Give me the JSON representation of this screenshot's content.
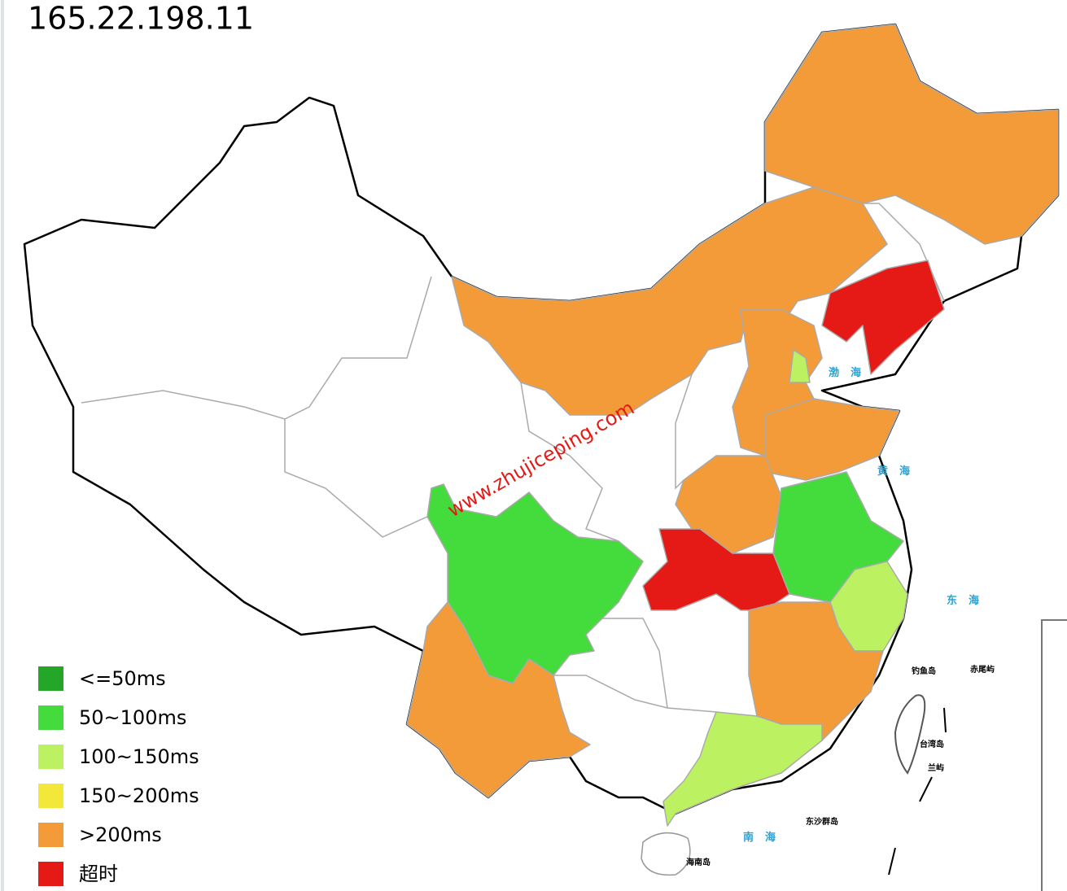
{
  "header": {
    "title": "165.22.198.11"
  },
  "legend": [
    {
      "label": "<=50ms",
      "color": "#24a628"
    },
    {
      "label": "50~100ms",
      "color": "#43dc3c"
    },
    {
      "label": "100~150ms",
      "color": "#bcf261"
    },
    {
      "label": "150~200ms",
      "color": "#f3e83a"
    },
    {
      "label": ">200ms",
      "color": "#f39a39"
    },
    {
      "label": "超时",
      "color": "#e51a16"
    }
  ],
  "watermark": "www.zhujiceping.com",
  "sea_labels": [
    "渤海",
    "黄海",
    "东海",
    "南海"
  ],
  "island_labels": [
    "钓鱼岛",
    "赤尾屿",
    "台湾岛",
    "兰屿",
    "东沙群岛",
    "海南岛"
  ]
}
